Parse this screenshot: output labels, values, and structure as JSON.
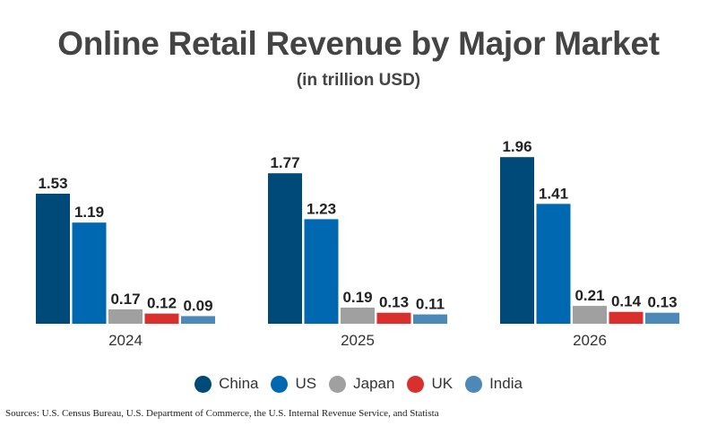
{
  "chart_data": {
    "type": "bar",
    "title": "Online Retail Revenue by Major Market",
    "subtitle": "(in trillion USD)",
    "categories": [
      "2024",
      "2025",
      "2026"
    ],
    "series": [
      {
        "name": "China",
        "color": "#004a79",
        "values": [
          1.53,
          1.77,
          1.96
        ]
      },
      {
        "name": "US",
        "color": "#0068b0",
        "values": [
          1.19,
          1.23,
          1.41
        ]
      },
      {
        "name": "Japan",
        "color": "#a0a0a0",
        "values": [
          0.17,
          0.19,
          0.21
        ]
      },
      {
        "name": "UK",
        "color": "#d9302e",
        "values": [
          0.12,
          0.13,
          0.14
        ]
      },
      {
        "name": "India",
        "color": "#4c88b8",
        "values": [
          0.09,
          0.11,
          0.13
        ]
      }
    ],
    "data_labels": true,
    "grid": false,
    "legend_position": "bottom"
  },
  "source": "Sources: U.S. Census Bureau, U.S. Department of Commerce, the U.S. Internal Revenue Service, and Statista"
}
